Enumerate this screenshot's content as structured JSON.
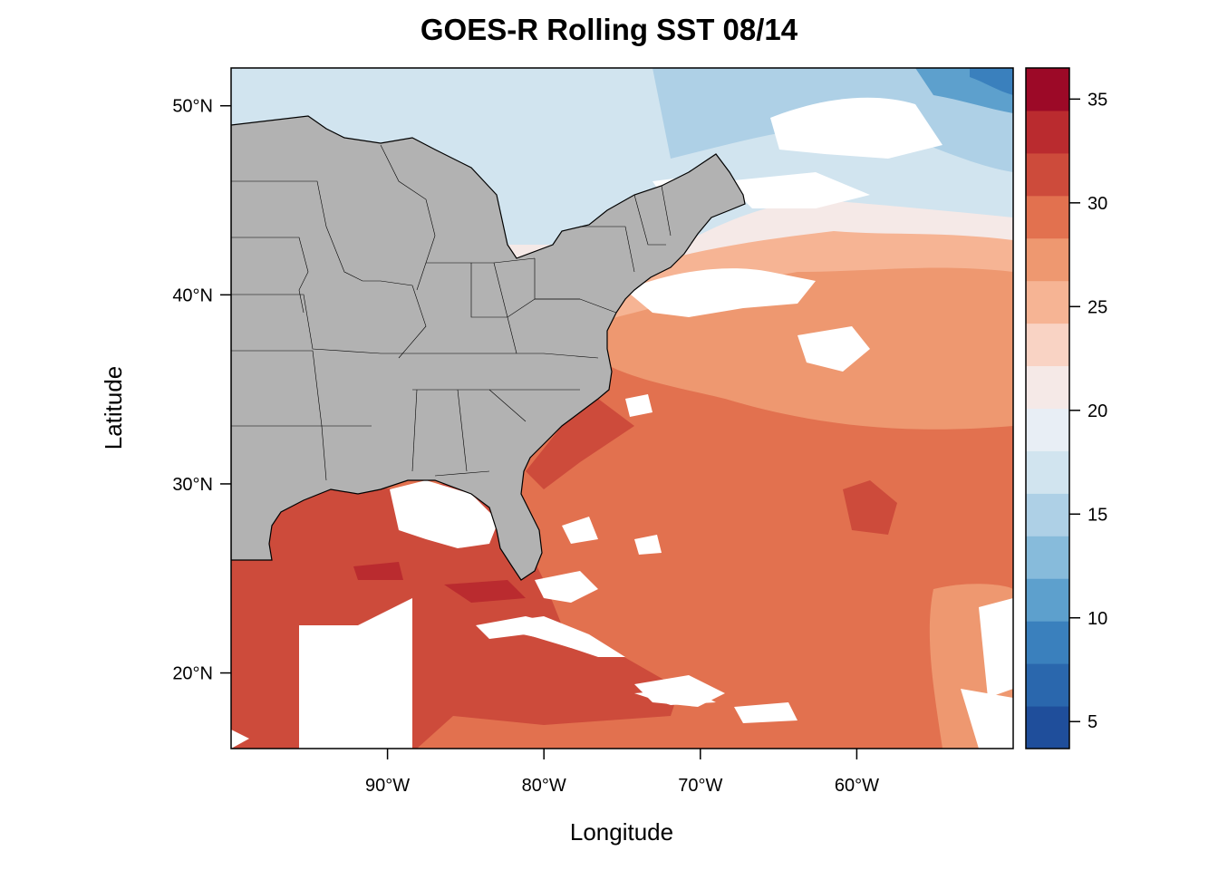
{
  "map": {
    "title": "GOES-R Rolling SST 08/14",
    "xlabel": "Longitude",
    "ylabel": "Latitude",
    "extent": {
      "lon": [
        -100,
        -50
      ],
      "lat": [
        16,
        52
      ]
    },
    "lon_ticks": [
      {
        "value": -90,
        "label": "90°W"
      },
      {
        "value": -80,
        "label": "80°W"
      },
      {
        "value": -70,
        "label": "70°W"
      },
      {
        "value": -60,
        "label": "60°W"
      }
    ],
    "lat_ticks": [
      {
        "value": 20,
        "label": "20°N"
      },
      {
        "value": 30,
        "label": "30°N"
      },
      {
        "value": 40,
        "label": "40°N"
      },
      {
        "value": 50,
        "label": "50°N"
      }
    ],
    "land_color": "#b2b2b2",
    "cloud_color": "#ffffff"
  },
  "colorbar": {
    "range": [
      3.7,
      36.5
    ],
    "ticks": [
      {
        "value": 5,
        "label": "5"
      },
      {
        "value": 10,
        "label": "10"
      },
      {
        "value": 15,
        "label": "15"
      },
      {
        "value": 20,
        "label": "20"
      },
      {
        "value": 25,
        "label": "25"
      },
      {
        "value": 30,
        "label": "30"
      },
      {
        "value": 35,
        "label": "35"
      }
    ],
    "colors": [
      "#1f4e9b",
      "#2a67ad",
      "#3a80bd",
      "#5da0cd",
      "#87bbdb",
      "#aed0e6",
      "#d1e4ef",
      "#e8eef5",
      "#f5e9e7",
      "#f9d3c4",
      "#f6b494",
      "#ee9870",
      "#e2714f",
      "#cd4b3b",
      "#ba2b2f",
      "#9c0927"
    ]
  }
}
